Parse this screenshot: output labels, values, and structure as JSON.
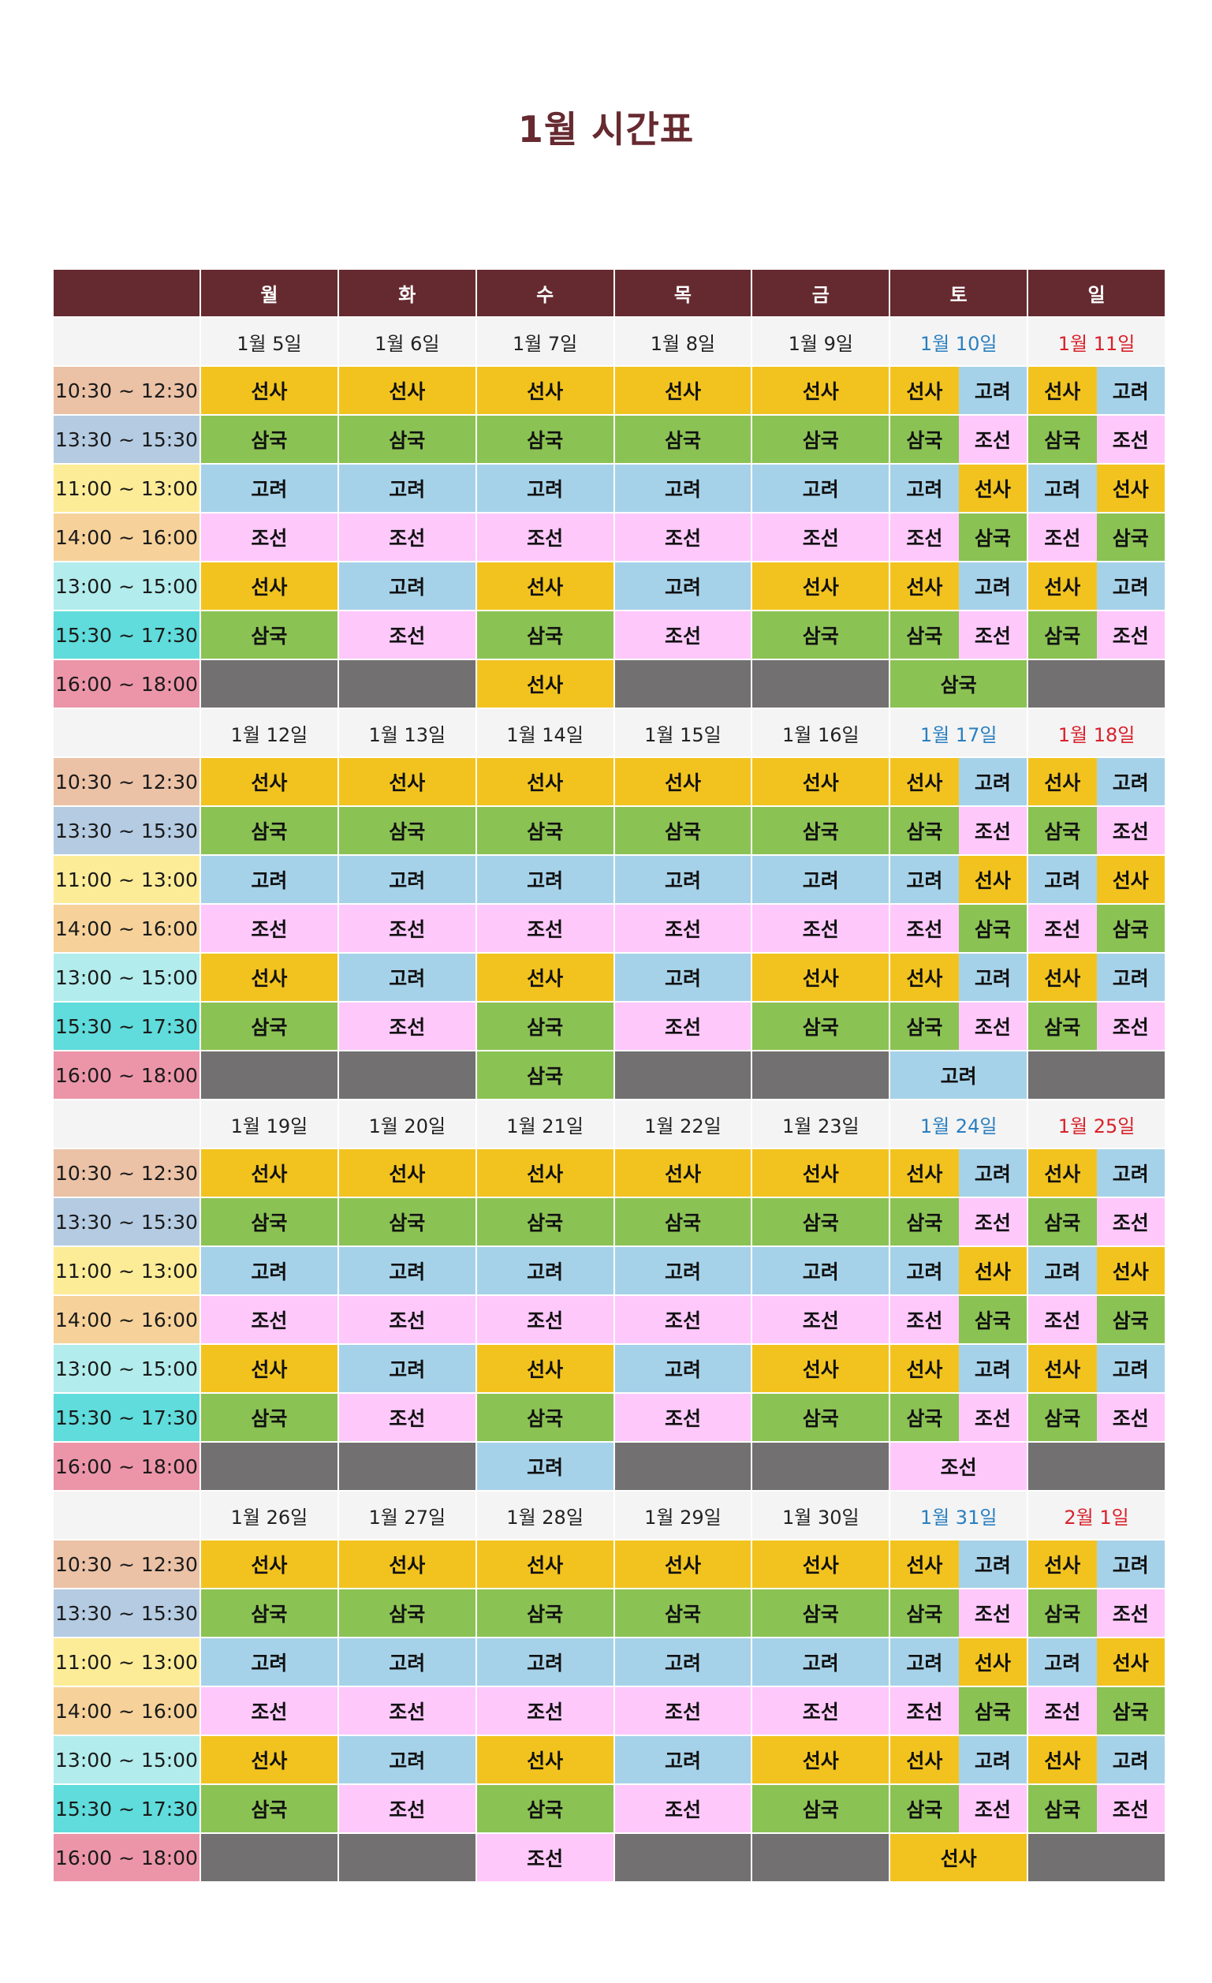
{
  "title": "1월 시간표",
  "colors": {
    "header_bg": "#652a2f",
    "date_bg": "#f4f4f4",
    "saturday_text": "#2a7fc0",
    "sunday_text": "#d9212b",
    "subjects": {
      "선사": "#f2c31f",
      "삼국": "#8bc254",
      "고려": "#a6d2e9",
      "조선": "#fec8fb",
      "empty": "#727070"
    },
    "time_slots": [
      "#ebc2a6",
      "#b4cbe2",
      "#fdec97",
      "#f6d29a",
      "#b2ecec",
      "#5fdcdb",
      "#ec95a9"
    ]
  },
  "header": {
    "days": [
      "월",
      "화",
      "수",
      "목",
      "금",
      "토",
      "일"
    ]
  },
  "time_slots": [
    "10:30 ~ 12:30",
    "13:30 ~ 15:30",
    "11:00 ~ 13:00",
    "14:00 ~ 16:00",
    "13:00 ~ 15:00",
    "15:30 ~ 17:30",
    "16:00 ~ 18:00"
  ],
  "weeks": [
    {
      "dates": [
        "1월 5일",
        "1월 6일",
        "1월 7일",
        "1월 8일",
        "1월 9일",
        "1월 10일",
        "1월 11일"
      ],
      "rows": [
        [
          [
            "선사"
          ],
          [
            "선사"
          ],
          [
            "선사"
          ],
          [
            "선사"
          ],
          [
            "선사"
          ],
          [
            "선사",
            "고려"
          ],
          [
            "선사",
            "고려"
          ]
        ],
        [
          [
            "삼국"
          ],
          [
            "삼국"
          ],
          [
            "삼국"
          ],
          [
            "삼국"
          ],
          [
            "삼국"
          ],
          [
            "삼국",
            "조선"
          ],
          [
            "삼국",
            "조선"
          ]
        ],
        [
          [
            "고려"
          ],
          [
            "고려"
          ],
          [
            "고려"
          ],
          [
            "고려"
          ],
          [
            "고려"
          ],
          [
            "고려",
            "선사"
          ],
          [
            "고려",
            "선사"
          ]
        ],
        [
          [
            "조선"
          ],
          [
            "조선"
          ],
          [
            "조선"
          ],
          [
            "조선"
          ],
          [
            "조선"
          ],
          [
            "조선",
            "삼국"
          ],
          [
            "조선",
            "삼국"
          ]
        ],
        [
          [
            "선사"
          ],
          [
            "고려"
          ],
          [
            "선사"
          ],
          [
            "고려"
          ],
          [
            "선사"
          ],
          [
            "선사",
            "고려"
          ],
          [
            "선사",
            "고려"
          ]
        ],
        [
          [
            "삼국"
          ],
          [
            "조선"
          ],
          [
            "삼국"
          ],
          [
            "조선"
          ],
          [
            "삼국"
          ],
          [
            "삼국",
            "조선"
          ],
          [
            "삼국",
            "조선"
          ]
        ],
        [
          [
            ""
          ],
          [
            ""
          ],
          [
            "선사"
          ],
          [
            ""
          ],
          [
            ""
          ],
          [
            "삼국"
          ],
          [
            ""
          ]
        ]
      ]
    },
    {
      "dates": [
        "1월 12일",
        "1월 13일",
        "1월 14일",
        "1월 15일",
        "1월 16일",
        "1월 17일",
        "1월 18일"
      ],
      "rows": [
        [
          [
            "선사"
          ],
          [
            "선사"
          ],
          [
            "선사"
          ],
          [
            "선사"
          ],
          [
            "선사"
          ],
          [
            "선사",
            "고려"
          ],
          [
            "선사",
            "고려"
          ]
        ],
        [
          [
            "삼국"
          ],
          [
            "삼국"
          ],
          [
            "삼국"
          ],
          [
            "삼국"
          ],
          [
            "삼국"
          ],
          [
            "삼국",
            "조선"
          ],
          [
            "삼국",
            "조선"
          ]
        ],
        [
          [
            "고려"
          ],
          [
            "고려"
          ],
          [
            "고려"
          ],
          [
            "고려"
          ],
          [
            "고려"
          ],
          [
            "고려",
            "선사"
          ],
          [
            "고려",
            "선사"
          ]
        ],
        [
          [
            "조선"
          ],
          [
            "조선"
          ],
          [
            "조선"
          ],
          [
            "조선"
          ],
          [
            "조선"
          ],
          [
            "조선",
            "삼국"
          ],
          [
            "조선",
            "삼국"
          ]
        ],
        [
          [
            "선사"
          ],
          [
            "고려"
          ],
          [
            "선사"
          ],
          [
            "고려"
          ],
          [
            "선사"
          ],
          [
            "선사",
            "고려"
          ],
          [
            "선사",
            "고려"
          ]
        ],
        [
          [
            "삼국"
          ],
          [
            "조선"
          ],
          [
            "삼국"
          ],
          [
            "조선"
          ],
          [
            "삼국"
          ],
          [
            "삼국",
            "조선"
          ],
          [
            "삼국",
            "조선"
          ]
        ],
        [
          [
            ""
          ],
          [
            ""
          ],
          [
            "삼국"
          ],
          [
            ""
          ],
          [
            ""
          ],
          [
            "고려"
          ],
          [
            ""
          ]
        ]
      ]
    },
    {
      "dates": [
        "1월 19일",
        "1월 20일",
        "1월 21일",
        "1월 22일",
        "1월 23일",
        "1월 24일",
        "1월 25일"
      ],
      "rows": [
        [
          [
            "선사"
          ],
          [
            "선사"
          ],
          [
            "선사"
          ],
          [
            "선사"
          ],
          [
            "선사"
          ],
          [
            "선사",
            "고려"
          ],
          [
            "선사",
            "고려"
          ]
        ],
        [
          [
            "삼국"
          ],
          [
            "삼국"
          ],
          [
            "삼국"
          ],
          [
            "삼국"
          ],
          [
            "삼국"
          ],
          [
            "삼국",
            "조선"
          ],
          [
            "삼국",
            "조선"
          ]
        ],
        [
          [
            "고려"
          ],
          [
            "고려"
          ],
          [
            "고려"
          ],
          [
            "고려"
          ],
          [
            "고려"
          ],
          [
            "고려",
            "선사"
          ],
          [
            "고려",
            "선사"
          ]
        ],
        [
          [
            "조선"
          ],
          [
            "조선"
          ],
          [
            "조선"
          ],
          [
            "조선"
          ],
          [
            "조선"
          ],
          [
            "조선",
            "삼국"
          ],
          [
            "조선",
            "삼국"
          ]
        ],
        [
          [
            "선사"
          ],
          [
            "고려"
          ],
          [
            "선사"
          ],
          [
            "고려"
          ],
          [
            "선사"
          ],
          [
            "선사",
            "고려"
          ],
          [
            "선사",
            "고려"
          ]
        ],
        [
          [
            "삼국"
          ],
          [
            "조선"
          ],
          [
            "삼국"
          ],
          [
            "조선"
          ],
          [
            "삼국"
          ],
          [
            "삼국",
            "조선"
          ],
          [
            "삼국",
            "조선"
          ]
        ],
        [
          [
            ""
          ],
          [
            ""
          ],
          [
            "고려"
          ],
          [
            ""
          ],
          [
            ""
          ],
          [
            "조선"
          ],
          [
            ""
          ]
        ]
      ]
    },
    {
      "dates": [
        "1월 26일",
        "1월 27일",
        "1월 28일",
        "1월 29일",
        "1월 30일",
        "1월 31일",
        "2월 1일"
      ],
      "rows": [
        [
          [
            "선사"
          ],
          [
            "선사"
          ],
          [
            "선사"
          ],
          [
            "선사"
          ],
          [
            "선사"
          ],
          [
            "선사",
            "고려"
          ],
          [
            "선사",
            "고려"
          ]
        ],
        [
          [
            "삼국"
          ],
          [
            "삼국"
          ],
          [
            "삼국"
          ],
          [
            "삼국"
          ],
          [
            "삼국"
          ],
          [
            "삼국",
            "조선"
          ],
          [
            "삼국",
            "조선"
          ]
        ],
        [
          [
            "고려"
          ],
          [
            "고려"
          ],
          [
            "고려"
          ],
          [
            "고려"
          ],
          [
            "고려"
          ],
          [
            "고려",
            "선사"
          ],
          [
            "고려",
            "선사"
          ]
        ],
        [
          [
            "조선"
          ],
          [
            "조선"
          ],
          [
            "조선"
          ],
          [
            "조선"
          ],
          [
            "조선"
          ],
          [
            "조선",
            "삼국"
          ],
          [
            "조선",
            "삼국"
          ]
        ],
        [
          [
            "선사"
          ],
          [
            "고려"
          ],
          [
            "선사"
          ],
          [
            "고려"
          ],
          [
            "선사"
          ],
          [
            "선사",
            "고려"
          ],
          [
            "선사",
            "고려"
          ]
        ],
        [
          [
            "삼국"
          ],
          [
            "조선"
          ],
          [
            "삼국"
          ],
          [
            "조선"
          ],
          [
            "삼국"
          ],
          [
            "삼국",
            "조선"
          ],
          [
            "삼국",
            "조선"
          ]
        ],
        [
          [
            ""
          ],
          [
            ""
          ],
          [
            "조선"
          ],
          [
            ""
          ],
          [
            ""
          ],
          [
            "선사"
          ],
          [
            ""
          ]
        ]
      ]
    }
  ]
}
